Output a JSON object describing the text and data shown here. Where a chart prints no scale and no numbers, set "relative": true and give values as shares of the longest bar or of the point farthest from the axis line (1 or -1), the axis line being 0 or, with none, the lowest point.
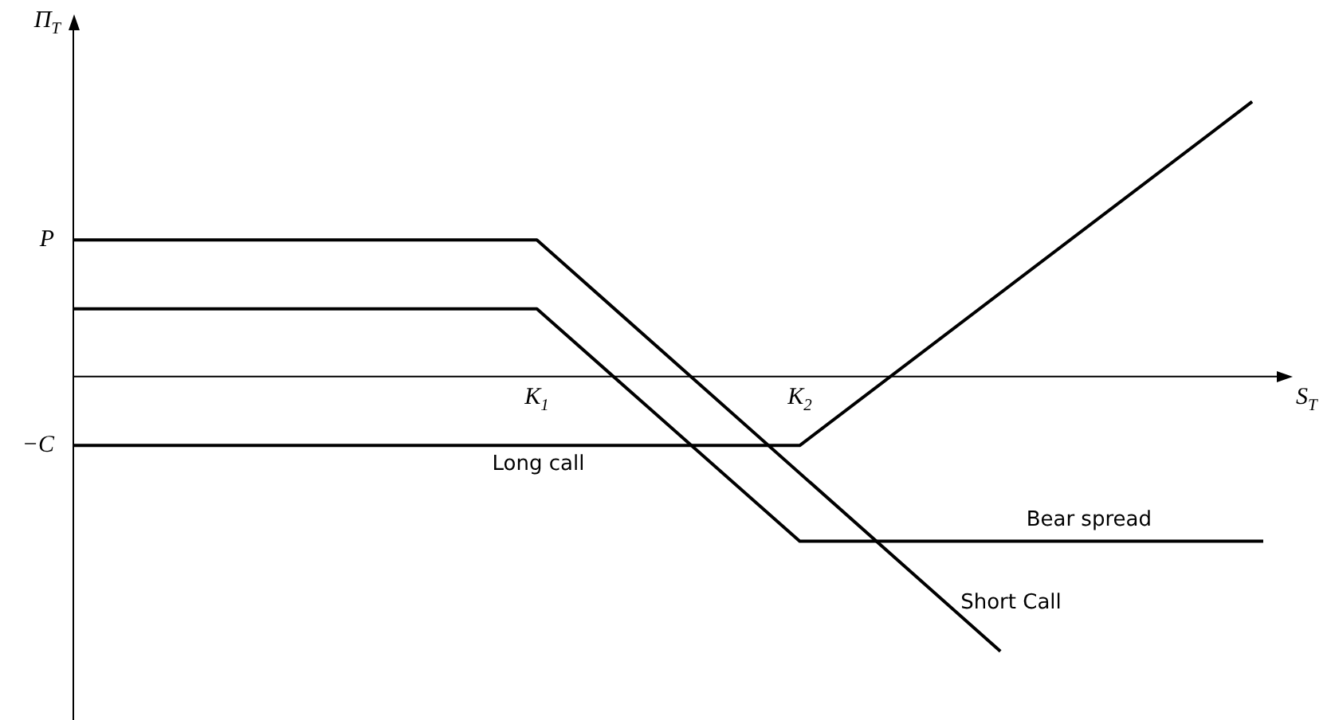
{
  "chart_data": {
    "type": "line",
    "relative": true,
    "xlabel": "S$_{T}$",
    "ylabel": "Π$_{T}$",
    "xlim": [
      0,
      2.61
    ],
    "xticks": [
      {
        "value": 1,
        "label": "K$_{1}$"
      },
      {
        "value": 1.567,
        "label": "K$_{2}$"
      }
    ],
    "series": [
      {
        "name": "Short Call",
        "color": "#000000",
        "x": [
          0,
          1,
          2.0
        ],
        "values": [
          0.497,
          0.497,
          -1.0
        ]
      },
      {
        "name": "Bear spread",
        "color": "#000000",
        "x": [
          0,
          1,
          1.567,
          2.567
        ],
        "values": [
          0.246,
          0.246,
          -0.599,
          -0.599
        ]
      },
      {
        "name": "Long call",
        "color": "#000000",
        "x": [
          0,
          1.567,
          2.543
        ],
        "values": [
          -0.251,
          -0.251,
          1.0
        ]
      }
    ],
    "annotations": [
      {
        "text": "P",
        "x": 0,
        "y": 0.497
      },
      {
        "text": "−C",
        "x": 0,
        "y": -0.251
      }
    ],
    "marker": "none",
    "line_style": "solid",
    "legend": false
  }
}
